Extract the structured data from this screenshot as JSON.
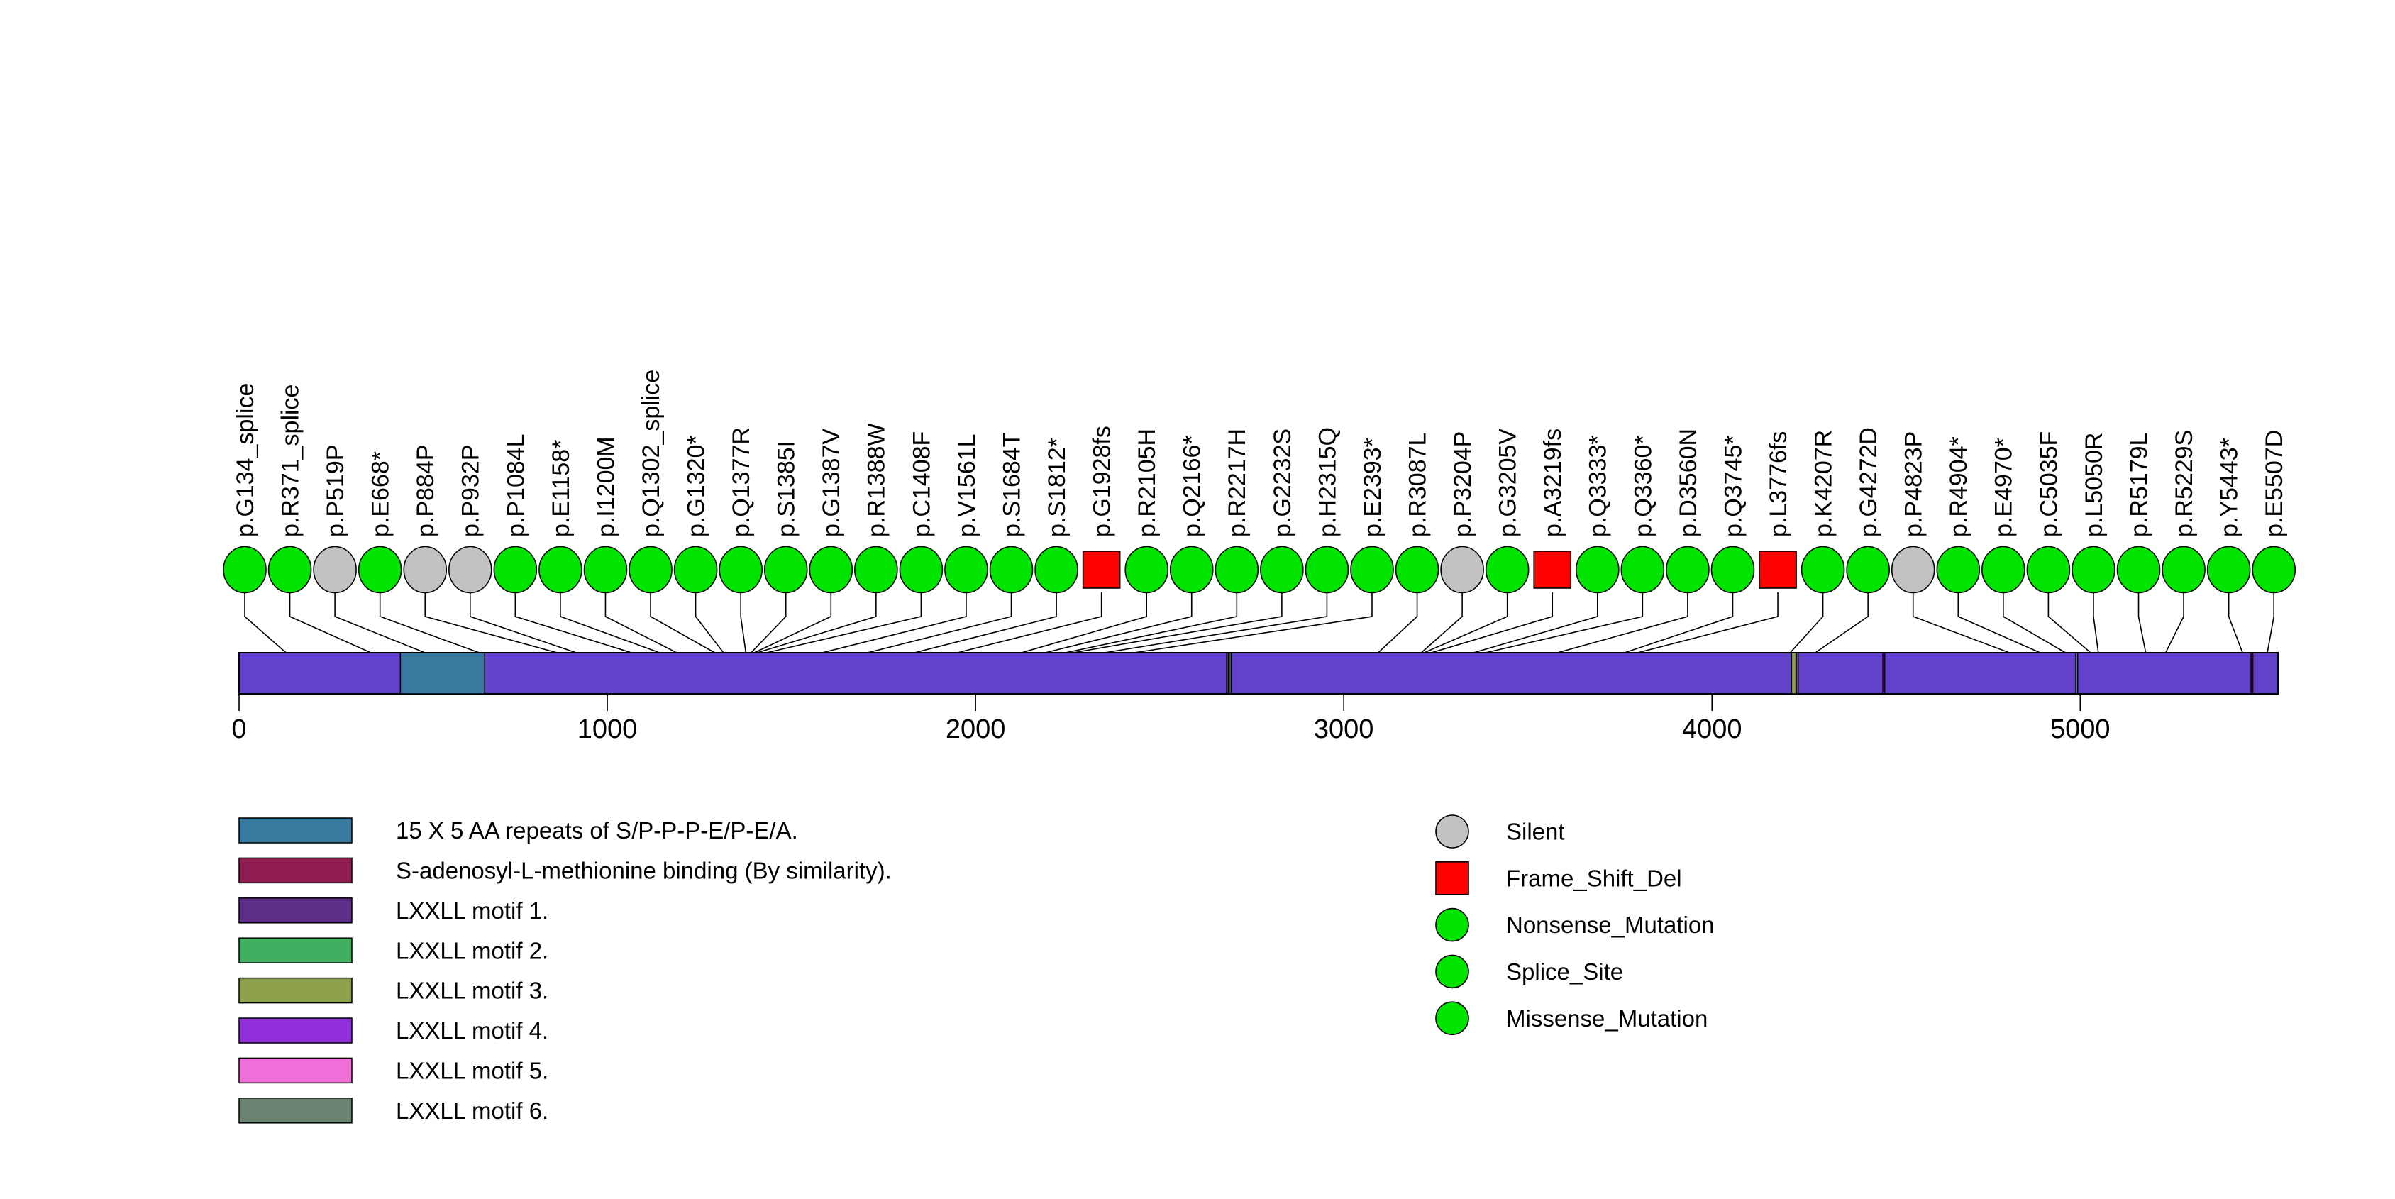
{
  "chart_data": {
    "type": "lollipop",
    "title": "",
    "xlabel": "",
    "axis": {
      "ticks": [
        0,
        1000,
        2000,
        3000,
        4000,
        5000
      ],
      "min": 0,
      "max": 5537
    },
    "protein": {
      "start": 0,
      "end": 5537,
      "backbone_color": "#6241CB"
    },
    "mutations": [
      {
        "label": "p.G134_splice",
        "pos": 134,
        "type": "Splice_Site"
      },
      {
        "label": "p.R371_splice",
        "pos": 371,
        "type": "Splice_Site"
      },
      {
        "label": "p.P519P",
        "pos": 519,
        "type": "Silent"
      },
      {
        "label": "p.E668*",
        "pos": 668,
        "type": "Nonsense_Mutation"
      },
      {
        "label": "p.P884P",
        "pos": 884,
        "type": "Silent"
      },
      {
        "label": "p.P932P",
        "pos": 932,
        "type": "Silent"
      },
      {
        "label": "p.P1084L",
        "pos": 1084,
        "type": "Missense_Mutation"
      },
      {
        "label": "p.E1158*",
        "pos": 1158,
        "type": "Nonsense_Mutation"
      },
      {
        "label": "p.I1200M",
        "pos": 1200,
        "type": "Missense_Mutation"
      },
      {
        "label": "p.Q1302_splice",
        "pos": 1302,
        "type": "Splice_Site"
      },
      {
        "label": "p.G1320*",
        "pos": 1320,
        "type": "Nonsense_Mutation"
      },
      {
        "label": "p.Q1377R",
        "pos": 1377,
        "type": "Missense_Mutation"
      },
      {
        "label": "p.S1385I",
        "pos": 1385,
        "type": "Missense_Mutation"
      },
      {
        "label": "p.G1387V",
        "pos": 1387,
        "type": "Missense_Mutation"
      },
      {
        "label": "p.R1388W",
        "pos": 1388,
        "type": "Missense_Mutation"
      },
      {
        "label": "p.C1408F",
        "pos": 1408,
        "type": "Missense_Mutation"
      },
      {
        "label": "p.V1561L",
        "pos": 1561,
        "type": "Missense_Mutation"
      },
      {
        "label": "p.S1684T",
        "pos": 1684,
        "type": "Missense_Mutation"
      },
      {
        "label": "p.S1812*",
        "pos": 1812,
        "type": "Nonsense_Mutation"
      },
      {
        "label": "p.G1928fs",
        "pos": 1928,
        "type": "Frame_Shift_Del"
      },
      {
        "label": "p.R2105H",
        "pos": 2105,
        "type": "Missense_Mutation"
      },
      {
        "label": "p.Q2166*",
        "pos": 2166,
        "type": "Nonsense_Mutation"
      },
      {
        "label": "p.R2217H",
        "pos": 2217,
        "type": "Missense_Mutation"
      },
      {
        "label": "p.G2232S",
        "pos": 2232,
        "type": "Missense_Mutation"
      },
      {
        "label": "p.H2315Q",
        "pos": 2315,
        "type": "Missense_Mutation"
      },
      {
        "label": "p.E2393*",
        "pos": 2393,
        "type": "Nonsense_Mutation"
      },
      {
        "label": "p.R3087L",
        "pos": 3087,
        "type": "Missense_Mutation"
      },
      {
        "label": "p.P3204P",
        "pos": 3204,
        "type": "Silent"
      },
      {
        "label": "p.G3205V",
        "pos": 3205,
        "type": "Missense_Mutation"
      },
      {
        "label": "p.A3219fs",
        "pos": 3219,
        "type": "Frame_Shift_Del"
      },
      {
        "label": "p.Q3333*",
        "pos": 3333,
        "type": "Nonsense_Mutation"
      },
      {
        "label": "p.Q3360*",
        "pos": 3360,
        "type": "Nonsense_Mutation"
      },
      {
        "label": "p.D3560N",
        "pos": 3560,
        "type": "Missense_Mutation"
      },
      {
        "label": "p.Q3745*",
        "pos": 3745,
        "type": "Nonsense_Mutation"
      },
      {
        "label": "p.L3776fs",
        "pos": 3776,
        "type": "Frame_Shift_Del"
      },
      {
        "label": "p.K4207R",
        "pos": 4207,
        "type": "Missense_Mutation"
      },
      {
        "label": "p.G4272D",
        "pos": 4272,
        "type": "Missense_Mutation"
      },
      {
        "label": "p.P4823P",
        "pos": 4823,
        "type": "Silent"
      },
      {
        "label": "p.R4904*",
        "pos": 4904,
        "type": "Nonsense_Mutation"
      },
      {
        "label": "p.E4970*",
        "pos": 4970,
        "type": "Nonsense_Mutation"
      },
      {
        "label": "p.C5035F",
        "pos": 5035,
        "type": "Missense_Mutation"
      },
      {
        "label": "p.L5050R",
        "pos": 5050,
        "type": "Missense_Mutation"
      },
      {
        "label": "p.R5179L",
        "pos": 5179,
        "type": "Missense_Mutation"
      },
      {
        "label": "p.R5229S",
        "pos": 5229,
        "type": "Missense_Mutation"
      },
      {
        "label": "p.Y5443*",
        "pos": 5443,
        "type": "Nonsense_Mutation"
      },
      {
        "label": "p.E5507D",
        "pos": 5507,
        "type": "Missense_Mutation"
      }
    ],
    "marker_styles": {
      "Silent": {
        "shape": "circle",
        "color": "#C2C2C2"
      },
      "Frame_Shift_Del": {
        "shape": "square",
        "color": "#FF0000"
      },
      "Nonsense_Mutation": {
        "shape": "circle",
        "color": "#00E400"
      },
      "Splice_Site": {
        "shape": "circle",
        "color": "#00E400"
      },
      "Missense_Mutation": {
        "shape": "circle",
        "color": "#00E400"
      }
    },
    "domains": [
      {
        "name": "15 X 5 AA repeats of S/P-P-P-E/P-E/A.",
        "start": 438,
        "end": 667,
        "color": "#38799F"
      },
      {
        "name": "LXXLL motif 1.",
        "start": 2682,
        "end": 2687,
        "color": "#5C2E87"
      },
      {
        "name": "LXXLL motif 2.",
        "start": 2689,
        "end": 2694,
        "color": "#41AF60"
      },
      {
        "name": "LXXLL motif 3.",
        "start": 4216,
        "end": 4228,
        "color": "#8DA14A"
      },
      {
        "name": "LXXLL motif 4.",
        "start": 4229,
        "end": 4234,
        "color": "#9130DB"
      },
      {
        "name": "LXXLL motif 5.",
        "start": 4464,
        "end": 4469,
        "color": "#F06FD8"
      },
      {
        "name": "LXXLL motif 6.",
        "start": 4988,
        "end": 4993,
        "color": "#6B8471"
      },
      {
        "name": "S-adenosyl-L-methionine binding (By similarity).",
        "start": 5464,
        "end": 5467,
        "color": "#8E1C51"
      }
    ],
    "legend_domains": [
      {
        "label": "15 X 5 AA repeats of S/P-P-P-E/P-E/A.",
        "color": "#38799F"
      },
      {
        "label": "S-adenosyl-L-methionine binding (By similarity).",
        "color": "#8E1C51"
      },
      {
        "label": "LXXLL motif 1.",
        "color": "#5C2E87"
      },
      {
        "label": "LXXLL motif 2.",
        "color": "#41AF60"
      },
      {
        "label": "LXXLL motif 3.",
        "color": "#8DA14A"
      },
      {
        "label": "LXXLL motif 4.",
        "color": "#9130DB"
      },
      {
        "label": "LXXLL motif 5.",
        "color": "#F06FD8"
      },
      {
        "label": "LXXLL motif 6.",
        "color": "#6B8471"
      }
    ],
    "legend_mutations": [
      {
        "label": "Silent",
        "shape": "circle",
        "color": "#C2C2C2"
      },
      {
        "label": "Frame_Shift_Del",
        "shape": "square",
        "color": "#FF0000"
      },
      {
        "label": "Nonsense_Mutation",
        "shape": "circle",
        "color": "#00E400"
      },
      {
        "label": "Splice_Site",
        "shape": "circle",
        "color": "#00E400"
      },
      {
        "label": "Missense_Mutation",
        "shape": "circle",
        "color": "#00E400"
      }
    ]
  }
}
